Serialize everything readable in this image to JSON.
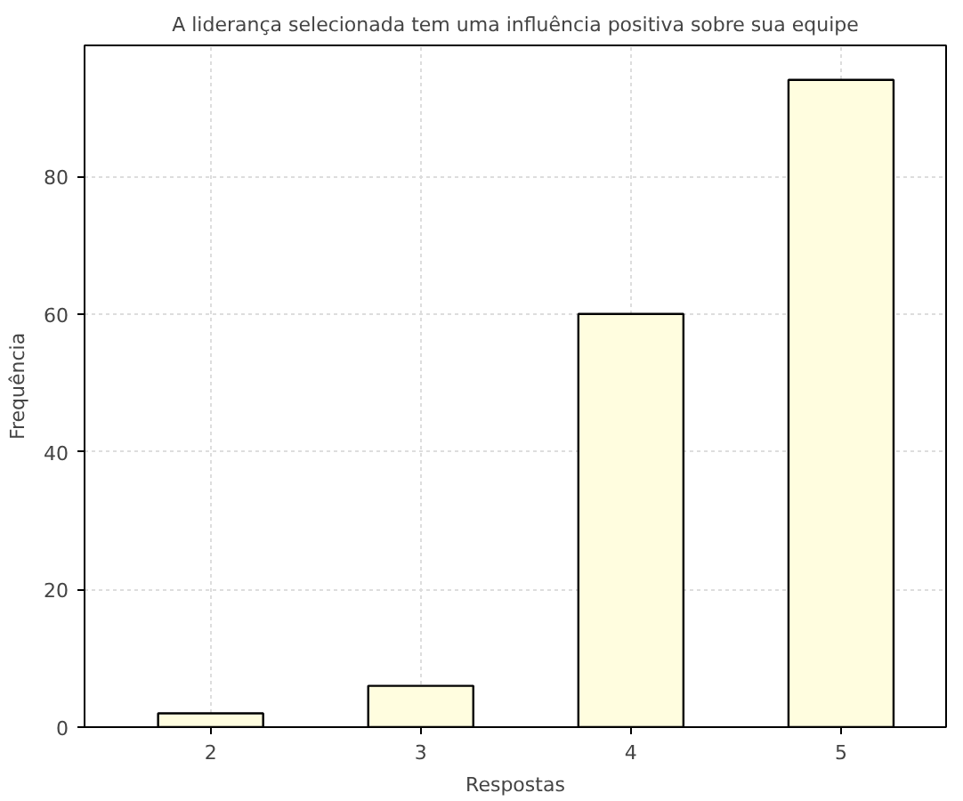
{
  "chart_data": {
    "type": "bar",
    "title": "A liderança selecionada tem uma influência positiva sobre sua equipe",
    "xlabel": "Respostas",
    "ylabel": "Frequência",
    "categories": [
      "2",
      "3",
      "4",
      "5"
    ],
    "values": [
      2,
      6,
      60,
      94
    ],
    "color": "#fffddf",
    "ylim": [
      0,
      99
    ],
    "yticks": [
      0,
      20,
      40,
      60,
      80
    ],
    "grid": true
  }
}
